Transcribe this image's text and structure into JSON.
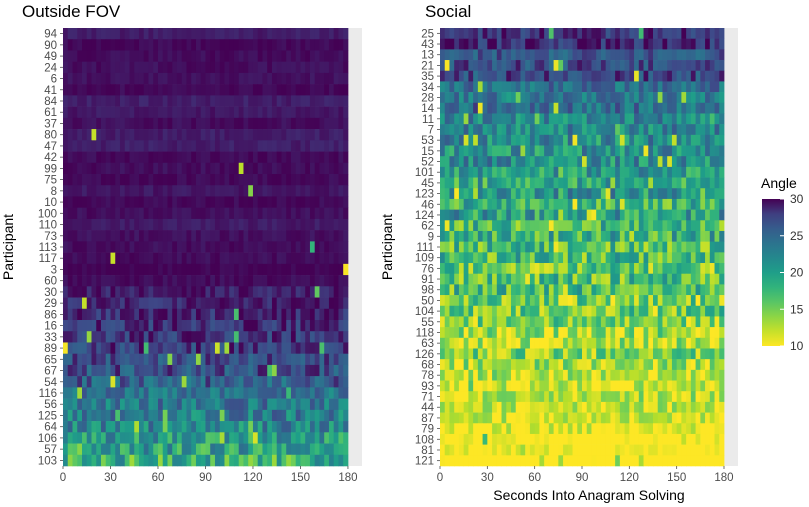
{
  "chart_data": [
    {
      "type": "heatmap",
      "title": "Outside FOV",
      "xlabel": "",
      "ylabel": "Participant",
      "xlim": [
        0,
        180
      ],
      "x_ticks": [
        "0",
        "30",
        "60",
        "90",
        "120",
        "150",
        "180"
      ],
      "participants": [
        "94",
        "90",
        "49",
        "24",
        "6",
        "41",
        "84",
        "61",
        "37",
        "80",
        "47",
        "42",
        "99",
        "75",
        "8",
        "10",
        "100",
        "110",
        "73",
        "113",
        "117",
        "3",
        "60",
        "30",
        "29",
        "86",
        "16",
        "33",
        "89",
        "65",
        "67",
        "54",
        "116",
        "56",
        "125",
        "64",
        "106",
        "57",
        "103"
      ],
      "value_description": "Mean gaze angle per second; values near 30 (dark purple) for most participants, decreasing toward the bottom rows (participants 116–103 reach ~15–22)."
    },
    {
      "type": "heatmap",
      "title": "Social",
      "xlabel": "Seconds Into Anagram Solving",
      "ylabel": "Participant",
      "xlim": [
        0,
        180
      ],
      "x_ticks": [
        "0",
        "30",
        "60",
        "90",
        "120",
        "150",
        "180"
      ],
      "participants": [
        "25",
        "43",
        "13",
        "21",
        "35",
        "34",
        "28",
        "14",
        "11",
        "7",
        "53",
        "15",
        "52",
        "101",
        "45",
        "123",
        "46",
        "124",
        "62",
        "9",
        "111",
        "109",
        "76",
        "91",
        "98",
        "50",
        "104",
        "55",
        "118",
        "63",
        "126",
        "68",
        "78",
        "93",
        "71",
        "44",
        "87",
        "79",
        "108",
        "81",
        "121"
      ],
      "value_description": "Mean gaze angle per second; high (~25–30) for top rows, decreasing to ~10 (yellow) for bottom rows."
    }
  ],
  "legend": {
    "title": "Angle",
    "min": 10,
    "max": 30,
    "ticks": [
      "30",
      "25",
      "20",
      "15",
      "10"
    ],
    "colormap": "viridis"
  }
}
